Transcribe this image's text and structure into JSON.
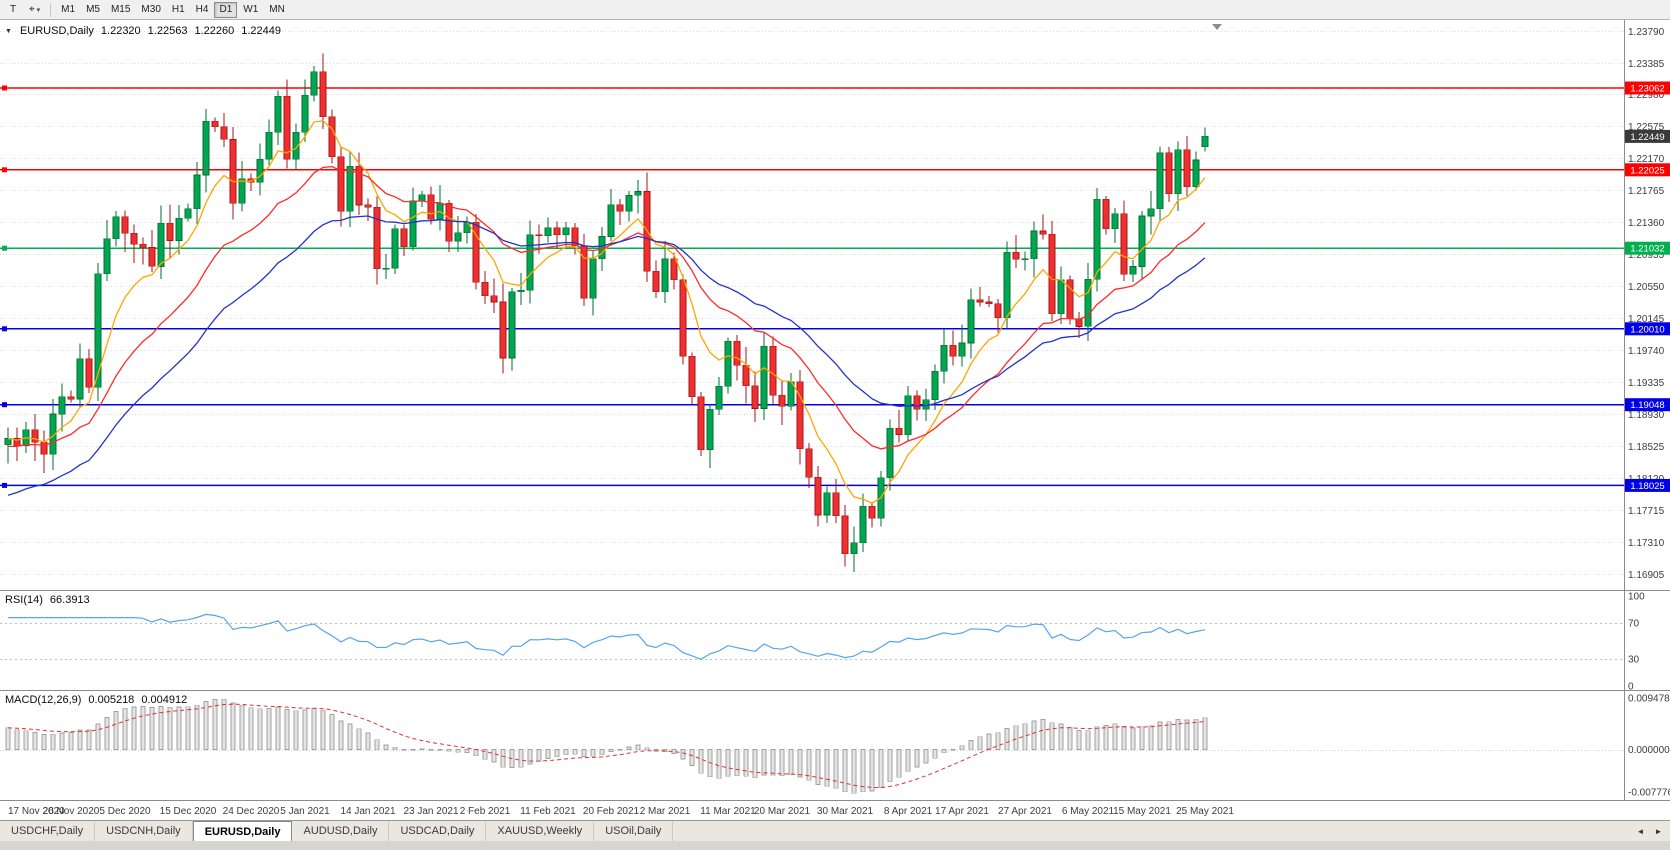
{
  "toolbar": {
    "t_button": "T",
    "cursor_icon": "⌖",
    "cursor_button_caret": "▾",
    "timeframes": [
      "M1",
      "M5",
      "M15",
      "M30",
      "H1",
      "H4",
      "D1",
      "W1",
      "MN"
    ],
    "active_timeframe": "D1"
  },
  "header": {
    "collapse_icon": "▼",
    "symbol": "EURUSD,Daily",
    "open": "1.22320",
    "high": "1.22563",
    "low": "1.22260",
    "close": "1.22449"
  },
  "rsi_panel": {
    "label": "RSI(14)",
    "value": "66.3913",
    "period": 14,
    "level_labels": [
      "100",
      "70",
      "30",
      "0"
    ],
    "level_values": [
      100,
      70,
      30,
      0
    ],
    "dotted_levels": [
      70,
      30
    ]
  },
  "macd_panel": {
    "label": "MACD(12,26,9)",
    "main_value": "0.005218",
    "signal_value": "0.004912",
    "fast": 12,
    "slow": 26,
    "signal": 9,
    "axis_labels": [
      "0.009478",
      "0.000000",
      "-0.007776"
    ],
    "axis_values": [
      0.009478,
      0,
      -0.007776
    ]
  },
  "price_axis": {
    "ticks": [
      "1.23790",
      "1.23385",
      "1.22980",
      "1.22575",
      "1.22170",
      "1.21765",
      "1.21360",
      "1.20955",
      "1.20550",
      "1.20145",
      "1.19740",
      "1.19335",
      "1.18930",
      "1.18525",
      "1.18120",
      "1.17715",
      "1.17310",
      "1.16905"
    ],
    "current_price_label": "1.22449",
    "current_price": 1.22449
  },
  "levels": [
    {
      "price": 1.23062,
      "label": "1.23062",
      "color": "#FF0000"
    },
    {
      "price": 1.22025,
      "label": "1.22025",
      "color": "#FF0000"
    },
    {
      "price": 1.21032,
      "label": "1.21032",
      "color": "#00B050"
    },
    {
      "price": 1.2001,
      "label": "1.20010",
      "color": "#0000E6"
    },
    {
      "price": 1.19048,
      "label": "1.19048",
      "color": "#0000E6"
    },
    {
      "price": 1.18025,
      "label": "1.18025",
      "color": "#0000E6"
    }
  ],
  "chart_data": {
    "type": "candlestick",
    "symbol": "EURUSD",
    "timeframe": "Daily",
    "y_range": [
      1.167,
      1.2392
    ],
    "x_labels": [
      "17 Nov 2020",
      "26 Nov 2020",
      "5 Dec 2020",
      "15 Dec 2020",
      "24 Dec 2020",
      "5 Jan 2021",
      "14 Jan 2021",
      "23 Jan 2021",
      "2 Feb 2021",
      "11 Feb 2021",
      "20 Feb 2021",
      "2 Mar 2021",
      "11 Mar 2021",
      "20 Mar 2021",
      "30 Mar 2021",
      "8 Apr 2021",
      "17 Apr 2021",
      "27 Apr 2021",
      "6 May 2021",
      "15 May 2021",
      "25 May 2021"
    ],
    "closes": [
      1.1862,
      1.1853,
      1.1873,
      1.1857,
      1.1842,
      1.1893,
      1.1915,
      1.1912,
      1.1963,
      1.1927,
      1.2071,
      1.2115,
      1.2143,
      1.2122,
      1.2108,
      1.2104,
      1.208,
      1.2135,
      1.2113,
      1.2141,
      1.2153,
      1.2196,
      1.2264,
      1.2257,
      1.2241,
      1.216,
      1.2191,
      1.2187,
      1.2216,
      1.225,
      1.2296,
      1.2216,
      1.225,
      1.2297,
      1.2327,
      1.227,
      1.2219,
      1.215,
      1.2207,
      1.2158,
      1.2155,
      1.2077,
      1.2078,
      1.2128,
      1.2105,
      1.2163,
      1.2171,
      1.214,
      1.216,
      1.2112,
      1.2123,
      1.2136,
      1.206,
      1.2043,
      1.2035,
      1.1964,
      1.2048,
      1.205,
      1.212,
      1.2119,
      1.2129,
      1.212,
      1.2129,
      1.2106,
      1.204,
      1.209,
      1.2118,
      1.2158,
      1.215,
      1.217,
      1.2175,
      1.2074,
      1.2048,
      1.209,
      1.2063,
      1.1966,
      1.1915,
      1.1848,
      1.1899,
      1.1928,
      1.1985,
      1.1955,
      1.1929,
      1.19,
      1.1979,
      1.1917,
      1.1903,
      1.1934,
      1.1849,
      1.1813,
      1.1765,
      1.1793,
      1.1764,
      1.1716,
      1.173,
      1.1776,
      1.1761,
      1.1812,
      1.1875,
      1.1867,
      1.1916,
      1.1899,
      1.1911,
      1.1947,
      1.198,
      1.1966,
      1.1983,
      1.2038,
      1.2035,
      1.2033,
      1.2015,
      1.2098,
      1.2089,
      1.209,
      1.2125,
      1.2121,
      1.202,
      1.2063,
      1.2014,
      1.2004,
      1.2064,
      1.2165,
      1.2128,
      1.2147,
      1.207,
      1.208,
      1.2144,
      1.2153,
      1.2224,
      1.2172,
      1.2228,
      1.2181,
      1.2215,
      1.22449
    ],
    "last_candle": [
      1.2232,
      1.22563,
      1.2226,
      1.22449
    ],
    "moving_averages": [
      {
        "period": 8,
        "color": "#FFA500",
        "seed": null
      },
      {
        "period": 20,
        "color": "#FF2A2A",
        "seed": 1.1852
      },
      {
        "period": 34,
        "color": "#2233CC",
        "seed": 1.179
      }
    ]
  },
  "tabs": {
    "items": [
      "USDCHF,Daily",
      "USDCNH,Daily",
      "EURUSD,Daily",
      "AUDUSD,Daily",
      "USDCAD,Daily",
      "XAUUSD,Weekly",
      "USOil,Daily"
    ],
    "active": "EURUSD,Daily",
    "left_arrow": "◄",
    "right_arrow": "►"
  },
  "colors": {
    "bull": "#00A651",
    "bull_stroke": "#00702F",
    "bear": "#EE3030",
    "bear_stroke": "#A51515",
    "grid": "#DCDCDC",
    "axis_text": "#3C3C3C",
    "divider": "#8C8C8C",
    "rsi_line": "#56A5EC",
    "macd_hist_fill": "#E4E4E4",
    "macd_hist_stroke": "#A0A0A0",
    "macd_signal": "#E03030",
    "current_price_bg": "#3A3A3A",
    "shift_marker": "#8C8C8C"
  }
}
